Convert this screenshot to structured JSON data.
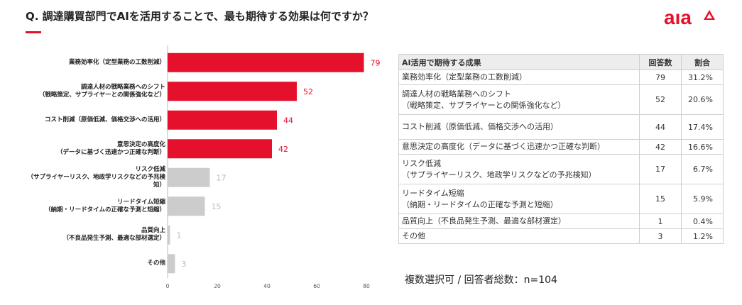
{
  "title": "Q. 調達購買部門でAIを活用することで、最も期待する効果は何ですか？",
  "logo_text": "aıa",
  "accent_color": "#e5102b",
  "gray_color": "#cccccc",
  "chart_data": {
    "type": "bar",
    "orientation": "horizontal",
    "categories": [
      [
        "業務効率化（定型業務の工数削減）"
      ],
      [
        "調達人材の戦略業務へのシフト",
        "（戦略策定、サプライヤーとの関係強化など）"
      ],
      [
        "コスト削減（原価低減、価格交渉への活用）"
      ],
      [
        "意思決定の高度化",
        "（データに基づく迅速かつ正確な判断）"
      ],
      [
        "リスク低減",
        "（サプライヤーリスク、地政学リスクなどの予兆検",
        "知）"
      ],
      [
        "リードタイム短縮",
        "（納期・リードタイムの正確な予測と短縮）"
      ],
      [
        "品質向上",
        "（不良品発生予測、最適な部材選定）"
      ],
      [
        "その他"
      ]
    ],
    "values": [
      79,
      52,
      44,
      42,
      17,
      15,
      1,
      3
    ],
    "highlight": [
      true,
      true,
      true,
      true,
      false,
      false,
      false,
      false
    ],
    "xlim": [
      0,
      80
    ],
    "xticks": [
      "0",
      "20",
      "40",
      "60",
      "80"
    ],
    "xlabel": "",
    "ylabel": ""
  },
  "table": {
    "headers": [
      "AI活用で期待する成果",
      "回答数",
      "割合"
    ],
    "rows": [
      {
        "lines": [
          "業務効率化（定型業務の工数削減）"
        ],
        "count": "79",
        "pct": "31.2%"
      },
      {
        "lines": [
          "調達人材の戦略業務へのシフト",
          "（戦略策定、サプライヤーとの関係強化など）"
        ],
        "count": "52",
        "pct": "20.6%"
      },
      {
        "lines": [
          "コスト削減（原価低減、価格交渉への活用）"
        ],
        "count": "44",
        "pct": "17.4%"
      },
      {
        "lines": [
          "意思決定の高度化（データに基づく迅速かつ正確な判断）"
        ],
        "count": "42",
        "pct": "16.6%"
      },
      {
        "lines": [
          "リスク低減",
          "（サプライヤーリスク、地政学リスクなどの予兆検知）"
        ],
        "count": "17",
        "pct": "6.7%"
      },
      {
        "lines": [
          "リードタイム短縮",
          "（納期・リードタイムの正確な予測と短縮）"
        ],
        "count": "15",
        "pct": "5.9%"
      },
      {
        "lines": [
          "品質向上（不良品発生予測、最適な部材選定）"
        ],
        "count": "1",
        "pct": "0.4%"
      },
      {
        "lines": [
          "その他"
        ],
        "count": "3",
        "pct": "1.2%"
      }
    ]
  },
  "note": "複数選択可 / 回答者総数：n=104"
}
